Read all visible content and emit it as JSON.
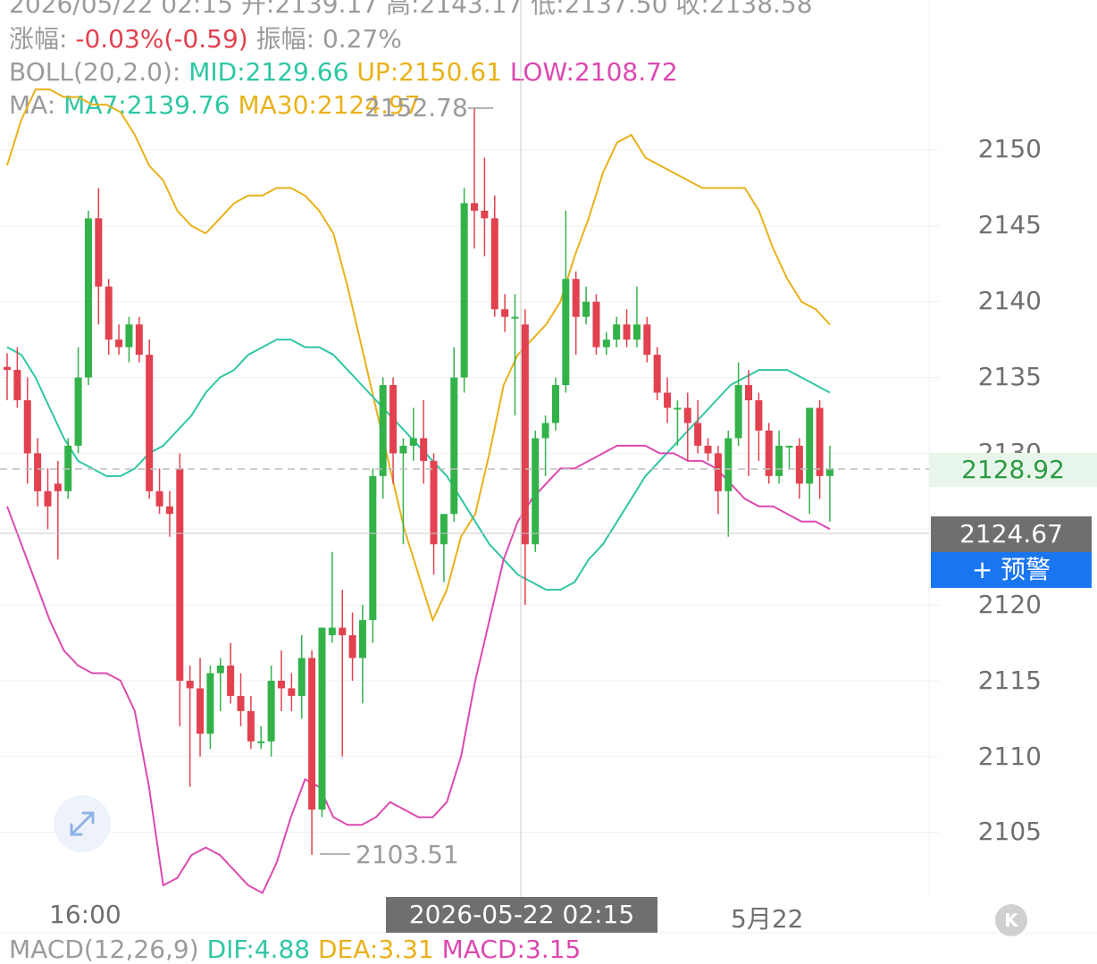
{
  "header": {
    "row0": {
      "date": "2026/05/22 02:15",
      "open_label": "开:",
      "open": "2139.17",
      "high_label": "高:",
      "high": "2143.17",
      "low_label": "低:",
      "low": "2137.50",
      "close_label": "收:",
      "close": "2138.58"
    },
    "row1": {
      "change_label": "涨幅:",
      "change": "-0.03%(-0.59)",
      "amp_label": "振幅:",
      "amp": "0.27%"
    },
    "row2": {
      "boll_label": "BOLL(20,2.0):",
      "mid": "MID:2129.66",
      "up": "UP:2150.61",
      "low": "LOW:2108.72"
    },
    "row3": {
      "ma_label": "MA:",
      "ma7": "MA7:2139.76",
      "ma30": "MA30:2124.97"
    }
  },
  "price_axis": [
    "2150",
    "2145",
    "2140",
    "2135",
    "2130",
    "2120",
    "2115",
    "2110",
    "2105"
  ],
  "last_price_badge": "2128.92",
  "crosshair_price": "2124.67",
  "alert_button": "+ 预警",
  "max_marker": "2152.78",
  "min_marker": "2103.51",
  "time_axis": {
    "left": "16:00",
    "crosshair": "2026-05-22 02:15",
    "right": "5月22"
  },
  "macd": {
    "label": "MACD(12,26,9)",
    "dif": "DIF:4.88",
    "dea": "DEA:3.31",
    "macd": "MACD:3.15"
  },
  "colors": {
    "up": "#33b24a",
    "down": "#e2414f",
    "mid": "#2fc6a4",
    "upper": "#e9b11a",
    "lower": "#dc49b0",
    "ma7": "#2fc6a4",
    "ma30": "#e9b11a"
  },
  "chart_data": {
    "type": "candlestick",
    "y_range": [
      2101,
      2156
    ],
    "candles": [
      {
        "o": 2135.7,
        "h": 2136.6,
        "l": 2133.5,
        "c": 2135.5
      },
      {
        "o": 2135.5,
        "h": 2137.0,
        "l": 2133.0,
        "c": 2133.5
      },
      {
        "o": 2133.5,
        "h": 2135.0,
        "l": 2128.0,
        "c": 2130.0
      },
      {
        "o": 2130.0,
        "h": 2131.0,
        "l": 2126.5,
        "c": 2127.5
      },
      {
        "o": 2127.5,
        "h": 2129.0,
        "l": 2125.0,
        "c": 2126.5
      },
      {
        "o": 2128.0,
        "h": 2129.5,
        "l": 2123.0,
        "c": 2127.5
      },
      {
        "o": 2127.5,
        "h": 2131.0,
        "l": 2127.0,
        "c": 2130.5
      },
      {
        "o": 2130.5,
        "h": 2137.0,
        "l": 2130.0,
        "c": 2135.0
      },
      {
        "o": 2135.0,
        "h": 2146.0,
        "l": 2134.5,
        "c": 2145.5
      },
      {
        "o": 2145.5,
        "h": 2147.5,
        "l": 2138.5,
        "c": 2141.0
      },
      {
        "o": 2141.0,
        "h": 2141.5,
        "l": 2136.5,
        "c": 2137.5
      },
      {
        "o": 2137.5,
        "h": 2138.5,
        "l": 2136.5,
        "c": 2137.0
      },
      {
        "o": 2137.0,
        "h": 2139.0,
        "l": 2136.0,
        "c": 2138.5
      },
      {
        "o": 2138.5,
        "h": 2139.0,
        "l": 2136.0,
        "c": 2136.5
      },
      {
        "o": 2136.5,
        "h": 2137.5,
        "l": 2127.0,
        "c": 2127.5
      },
      {
        "o": 2127.5,
        "h": 2129.0,
        "l": 2126.0,
        "c": 2126.5
      },
      {
        "o": 2126.5,
        "h": 2127.5,
        "l": 2124.5,
        "c": 2126.0
      },
      {
        "o": 2129.0,
        "h": 2130.0,
        "l": 2112.0,
        "c": 2115.0
      },
      {
        "o": 2115.0,
        "h": 2116.0,
        "l": 2108.0,
        "c": 2114.5
      },
      {
        "o": 2114.5,
        "h": 2116.5,
        "l": 2110.0,
        "c": 2111.5
      },
      {
        "o": 2111.5,
        "h": 2116.0,
        "l": 2110.5,
        "c": 2115.5
      },
      {
        "o": 2115.5,
        "h": 2116.5,
        "l": 2113.0,
        "c": 2116.0
      },
      {
        "o": 2116.0,
        "h": 2117.5,
        "l": 2113.5,
        "c": 2114.0
      },
      {
        "o": 2114.0,
        "h": 2115.5,
        "l": 2112.0,
        "c": 2113.0
      },
      {
        "o": 2113.0,
        "h": 2114.0,
        "l": 2110.5,
        "c": 2111.0
      },
      {
        "o": 2111.0,
        "h": 2112.0,
        "l": 2110.5,
        "c": 2111.0
      },
      {
        "o": 2111.0,
        "h": 2116.0,
        "l": 2110.0,
        "c": 2115.0
      },
      {
        "o": 2115.0,
        "h": 2117.0,
        "l": 2113.0,
        "c": 2114.5
      },
      {
        "o": 2114.5,
        "h": 2115.5,
        "l": 2113.0,
        "c": 2114.0
      },
      {
        "o": 2114.0,
        "h": 2118.0,
        "l": 2112.5,
        "c": 2116.5
      },
      {
        "o": 2116.5,
        "h": 2117.0,
        "l": 2103.51,
        "c": 2106.5
      },
      {
        "o": 2106.5,
        "h": 2118.0,
        "l": 2106.0,
        "c": 2118.5
      },
      {
        "o": 2118.0,
        "h": 2123.5,
        "l": 2117.5,
        "c": 2118.5
      },
      {
        "o": 2118.5,
        "h": 2121.0,
        "l": 2110.0,
        "c": 2118.0
      },
      {
        "o": 2118.0,
        "h": 2119.5,
        "l": 2115.0,
        "c": 2116.5
      },
      {
        "o": 2116.5,
        "h": 2120.0,
        "l": 2113.5,
        "c": 2119.0
      },
      {
        "o": 2119.0,
        "h": 2129.0,
        "l": 2117.5,
        "c": 2128.5
      },
      {
        "o": 2128.5,
        "h": 2135.0,
        "l": 2127.0,
        "c": 2134.5
      },
      {
        "o": 2134.5,
        "h": 2135.0,
        "l": 2128.0,
        "c": 2130.0
      },
      {
        "o": 2130.0,
        "h": 2131.0,
        "l": 2124.0,
        "c": 2130.5
      },
      {
        "o": 2130.5,
        "h": 2133.0,
        "l": 2129.5,
        "c": 2131.0
      },
      {
        "o": 2131.0,
        "h": 2133.5,
        "l": 2128.0,
        "c": 2129.5
      },
      {
        "o": 2129.5,
        "h": 2130.0,
        "l": 2122.0,
        "c": 2124.0
      },
      {
        "o": 2124.0,
        "h": 2126.0,
        "l": 2121.5,
        "c": 2126.0
      },
      {
        "o": 2126.0,
        "h": 2137.0,
        "l": 2125.5,
        "c": 2135.0
      },
      {
        "o": 2135.0,
        "h": 2147.5,
        "l": 2134.0,
        "c": 2146.5
      },
      {
        "o": 2146.5,
        "h": 2152.78,
        "l": 2143.5,
        "c": 2146.0
      },
      {
        "o": 2146.0,
        "h": 2149.5,
        "l": 2143.0,
        "c": 2145.5
      },
      {
        "o": 2145.5,
        "h": 2147.0,
        "l": 2139.0,
        "c": 2139.5
      },
      {
        "o": 2139.5,
        "h": 2140.5,
        "l": 2138.0,
        "c": 2139.0
      },
      {
        "o": 2139.0,
        "h": 2140.5,
        "l": 2132.5,
        "c": 2139.0
      },
      {
        "o": 2138.5,
        "h": 2139.5,
        "l": 2120.0,
        "c": 2124.0
      },
      {
        "o": 2124.0,
        "h": 2131.5,
        "l": 2123.5,
        "c": 2131.0
      },
      {
        "o": 2131.0,
        "h": 2132.5,
        "l": 2128.5,
        "c": 2132.0
      },
      {
        "o": 2132.0,
        "h": 2135.0,
        "l": 2131.5,
        "c": 2134.5
      },
      {
        "o": 2134.5,
        "h": 2146.0,
        "l": 2134.0,
        "c": 2141.5
      },
      {
        "o": 2141.5,
        "h": 2142.0,
        "l": 2136.5,
        "c": 2139.0
      },
      {
        "o": 2139.0,
        "h": 2141.0,
        "l": 2138.5,
        "c": 2140.0
      },
      {
        "o": 2140.0,
        "h": 2140.5,
        "l": 2136.5,
        "c": 2137.0
      },
      {
        "o": 2137.0,
        "h": 2138.0,
        "l": 2136.5,
        "c": 2137.5
      },
      {
        "o": 2137.5,
        "h": 2139.0,
        "l": 2137.0,
        "c": 2138.5
      },
      {
        "o": 2138.5,
        "h": 2139.5,
        "l": 2137.0,
        "c": 2137.5
      },
      {
        "o": 2137.5,
        "h": 2141.0,
        "l": 2137.0,
        "c": 2138.5
      },
      {
        "o": 2138.5,
        "h": 2139.0,
        "l": 2136.0,
        "c": 2136.5
      },
      {
        "o": 2136.5,
        "h": 2137.0,
        "l": 2133.5,
        "c": 2134.0
      },
      {
        "o": 2134.0,
        "h": 2135.0,
        "l": 2132.0,
        "c": 2133.0
      },
      {
        "o": 2133.0,
        "h": 2133.5,
        "l": 2130.5,
        "c": 2133.0
      },
      {
        "o": 2133.0,
        "h": 2134.0,
        "l": 2129.5,
        "c": 2132.0
      },
      {
        "o": 2132.0,
        "h": 2133.5,
        "l": 2130.0,
        "c": 2130.5
      },
      {
        "o": 2130.5,
        "h": 2131.0,
        "l": 2129.5,
        "c": 2130.0
      },
      {
        "o": 2130.0,
        "h": 2130.5,
        "l": 2126.0,
        "c": 2127.5
      },
      {
        "o": 2127.5,
        "h": 2131.5,
        "l": 2124.5,
        "c": 2131.0
      },
      {
        "o": 2131.0,
        "h": 2136.0,
        "l": 2130.5,
        "c": 2134.5
      },
      {
        "o": 2134.5,
        "h": 2135.5,
        "l": 2128.5,
        "c": 2133.5
      },
      {
        "o": 2133.5,
        "h": 2134.0,
        "l": 2129.5,
        "c": 2131.5
      },
      {
        "o": 2131.5,
        "h": 2132.0,
        "l": 2128.0,
        "c": 2128.5
      },
      {
        "o": 2128.5,
        "h": 2131.5,
        "l": 2128.0,
        "c": 2130.5
      },
      {
        "o": 2130.5,
        "h": 2130.5,
        "l": 2129.0,
        "c": 2130.5
      },
      {
        "o": 2130.5,
        "h": 2131.0,
        "l": 2127.0,
        "c": 2128.0
      },
      {
        "o": 2128.0,
        "h": 2133.0,
        "l": 2126.0,
        "c": 2133.0
      },
      {
        "o": 2133.0,
        "h": 2133.5,
        "l": 2127.0,
        "c": 2128.5
      },
      {
        "o": 2128.5,
        "h": 2130.5,
        "l": 2125.5,
        "c": 2129.0
      }
    ],
    "boll_upper": [
      2149,
      2152,
      2154,
      2154,
      2153.5,
      2153.5,
      2153,
      2153,
      2152.5,
      2151,
      2149,
      2148,
      2146,
      2145,
      2144.5,
      2145.5,
      2146.5,
      2147,
      2147,
      2147.5,
      2147.5,
      2147,
      2146,
      2144.5,
      2141,
      2137,
      2133,
      2129,
      2125,
      2122,
      2119,
      2121,
      2124.5,
      2126,
      2130,
      2134.5,
      2136.5,
      2137.5,
      2138.5,
      2140,
      2143,
      2145.5,
      2148.5,
      2150.5,
      2151,
      2149.5,
      2149,
      2148.5,
      2148,
      2147.5,
      2147.5,
      2147.5,
      2147.5,
      2146,
      2143.5,
      2141.5,
      2140,
      2139.5,
      2138.5
    ],
    "boll_mid": [
      2137,
      2136.5,
      2135,
      2133,
      2131,
      2129.5,
      2129,
      2128.5,
      2128.5,
      2129,
      2130,
      2130.5,
      2131.5,
      2132.5,
      2134,
      2135,
      2135.5,
      2136.5,
      2137,
      2137.5,
      2137.5,
      2137,
      2137,
      2136.5,
      2135.5,
      2134.5,
      2133.5,
      2132.5,
      2131.5,
      2130.5,
      2129.5,
      2128.5,
      2127,
      2125.5,
      2124,
      2123,
      2122,
      2121.5,
      2121,
      2121,
      2121.5,
      2123,
      2124,
      2125.5,
      2127,
      2128.5,
      2129.5,
      2130.5,
      2131.5,
      2132.5,
      2133.5,
      2134.5,
      2135,
      2135.5,
      2135.5,
      2135.5,
      2135,
      2134.5,
      2134
    ],
    "boll_lower": [
      2126.5,
      2124,
      2121.5,
      2119,
      2117,
      2116,
      2115.5,
      2115.5,
      2115,
      2113,
      2108,
      2101.5,
      2102,
      2103.5,
      2104,
      2103.5,
      2102.5,
      2101.5,
      2101,
      2103,
      2106,
      2108.5,
      2108,
      2106,
      2105.5,
      2105.5,
      2106,
      2107,
      2106.5,
      2106,
      2106,
      2107,
      2110,
      2115,
      2119,
      2123,
      2125.5,
      2127,
      2128,
      2129,
      2129,
      2129.5,
      2130,
      2130.5,
      2130.5,
      2130.5,
      2130,
      2130,
      2129.5,
      2129.5,
      2129,
      2128,
      2127,
      2126.5,
      2126.5,
      2126,
      2125.5,
      2125.5,
      2125
    ]
  }
}
